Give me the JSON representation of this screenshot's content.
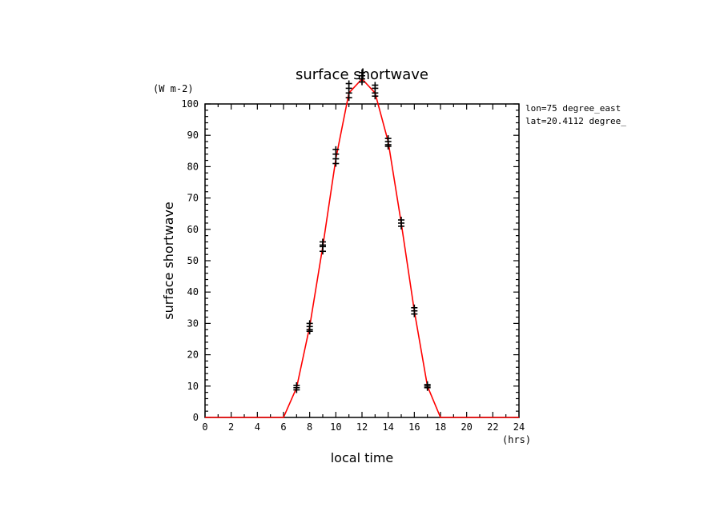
{
  "chart_data": {
    "type": "line",
    "title": "surface shortwave",
    "ylabel": "surface shortwave",
    "xlabel": "local time",
    "y_unit": "(W m-2)",
    "x_unit": "(hrs)",
    "xlim": [
      0,
      24
    ],
    "ylim": [
      0,
      100
    ],
    "x_ticks": [
      "0",
      "2",
      "4",
      "6",
      "8",
      "10",
      "12",
      "14",
      "16",
      "18",
      "20",
      "22",
      "24"
    ],
    "y_ticks": [
      "0",
      "10",
      "20",
      "30",
      "40",
      "50",
      "60",
      "70",
      "80",
      "90",
      "100"
    ],
    "annotations": [
      "lon=75 degree_east",
      "lat=20.4112 degree_"
    ],
    "grid": false,
    "series": [
      {
        "color": "#ff0000",
        "x": [
          0,
          1,
          2,
          3,
          4,
          5,
          6,
          7,
          8,
          9,
          10,
          11,
          12,
          13,
          14,
          15,
          16,
          17,
          18,
          19,
          20,
          21,
          22,
          23,
          24
        ],
        "y": [
          0,
          0,
          0,
          0,
          0,
          0,
          0,
          9.5,
          29,
          54.5,
          82.5,
          103.5,
          108,
          103.5,
          88,
          62,
          34,
          10,
          0,
          0,
          0,
          0,
          0,
          0,
          0
        ]
      }
    ],
    "scatter_points": [
      {
        "x": 7,
        "y": 9.5
      },
      {
        "x": 7,
        "y": 8.8
      },
      {
        "x": 7,
        "y": 10.2
      },
      {
        "x": 8,
        "y": 29
      },
      {
        "x": 8,
        "y": 28
      },
      {
        "x": 8,
        "y": 30
      },
      {
        "x": 8,
        "y": 27.5
      },
      {
        "x": 9,
        "y": 54.5
      },
      {
        "x": 9,
        "y": 53
      },
      {
        "x": 9,
        "y": 56
      },
      {
        "x": 9,
        "y": 55
      },
      {
        "x": 10,
        "y": 82.5
      },
      {
        "x": 10,
        "y": 81
      },
      {
        "x": 10,
        "y": 84
      },
      {
        "x": 10,
        "y": 85.5
      },
      {
        "x": 11,
        "y": 103.5
      },
      {
        "x": 11,
        "y": 102
      },
      {
        "x": 11,
        "y": 105
      },
      {
        "x": 11,
        "y": 106.5
      },
      {
        "x": 12,
        "y": 108
      },
      {
        "x": 12,
        "y": 107
      },
      {
        "x": 12,
        "y": 109
      },
      {
        "x": 12,
        "y": 110
      },
      {
        "x": 13,
        "y": 103.5
      },
      {
        "x": 13,
        "y": 102.5
      },
      {
        "x": 13,
        "y": 105
      },
      {
        "x": 13,
        "y": 106
      },
      {
        "x": 14,
        "y": 88
      },
      {
        "x": 14,
        "y": 87
      },
      {
        "x": 14,
        "y": 89
      },
      {
        "x": 14,
        "y": 86.5
      },
      {
        "x": 15,
        "y": 62
      },
      {
        "x": 15,
        "y": 61
      },
      {
        "x": 15,
        "y": 63
      },
      {
        "x": 16,
        "y": 34
      },
      {
        "x": 16,
        "y": 33
      },
      {
        "x": 16,
        "y": 35
      },
      {
        "x": 17,
        "y": 10
      },
      {
        "x": 17,
        "y": 9.5
      },
      {
        "x": 17,
        "y": 10.5
      }
    ]
  }
}
